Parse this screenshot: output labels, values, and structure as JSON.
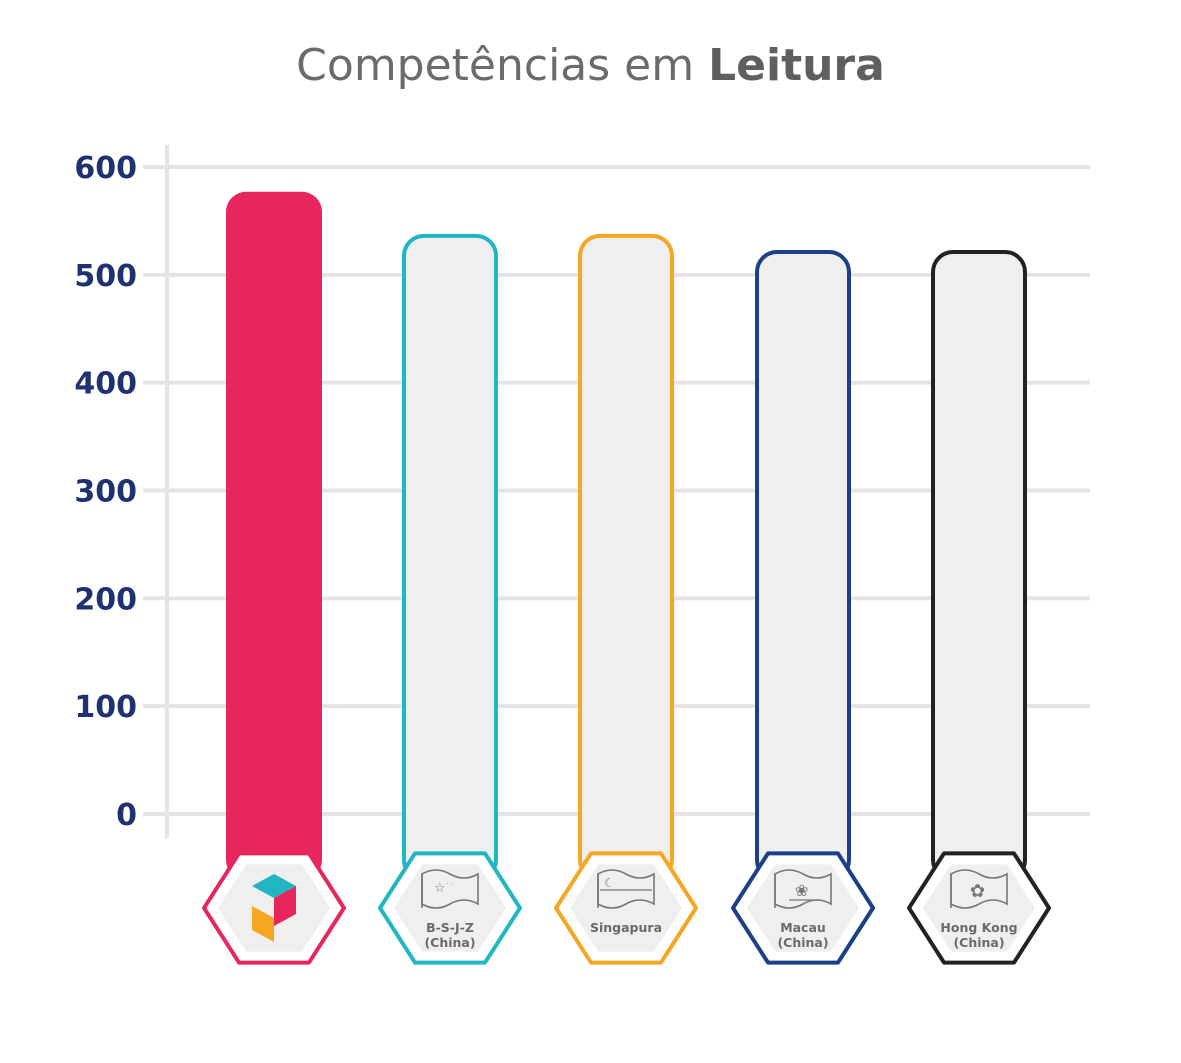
{
  "chart_data": {
    "type": "bar",
    "title_light": "Competências em",
    "title_bold": "Leitura",
    "ylim": [
      0,
      600
    ],
    "yticks": [
      0,
      100,
      200,
      300,
      400,
      500,
      600
    ],
    "grid": true,
    "categories": [
      "",
      "B-S-J-Z\n(China)",
      "Singapura",
      "Macau\n(China)",
      "Hong Kong\n(China)"
    ],
    "values": [
      577,
      538,
      538,
      523,
      523
    ],
    "colors": [
      "#e8265e",
      "#22b5c2",
      "#f5a623",
      "#1c3f87",
      "#222222"
    ],
    "filled": [
      true,
      false,
      false,
      false,
      false
    ],
    "icons": [
      "brand-logo-icon",
      "china-flag-icon",
      "singapore-flag-icon",
      "macau-flag-icon",
      "hong-kong-flag-icon"
    ],
    "tick_color": "#1f3170",
    "grid_color": "#e4e4e4",
    "empty_fill": "#efefef"
  }
}
